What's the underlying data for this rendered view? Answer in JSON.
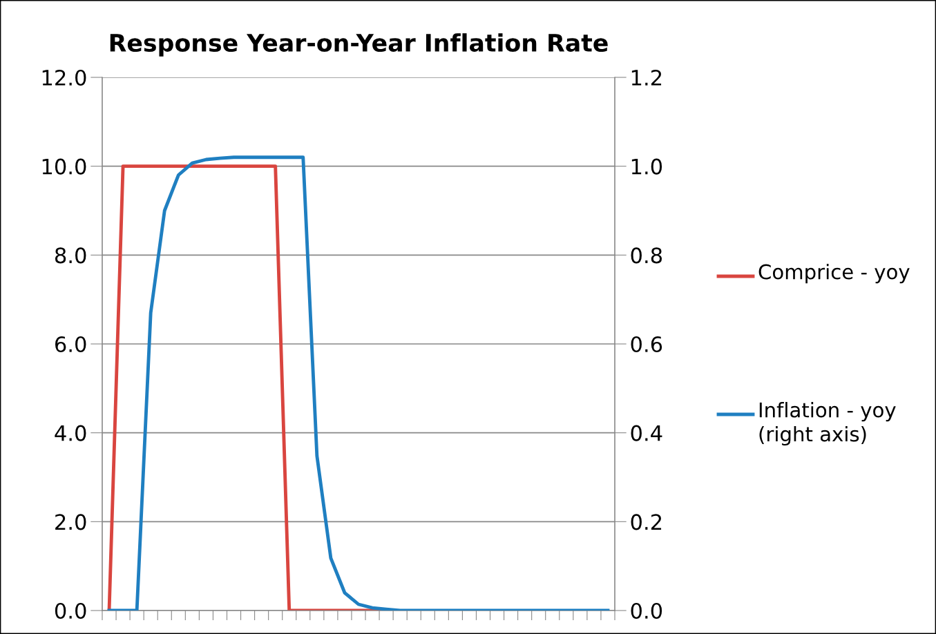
{
  "chart_data": {
    "type": "line",
    "title": "Response Year-on-Year Inflation Rate",
    "categories": [
      null,
      null,
      null,
      null,
      null,
      null,
      null,
      null,
      null,
      null,
      null,
      null,
      null,
      null,
      null,
      null,
      null,
      null,
      null,
      null,
      null,
      null,
      null,
      null,
      null,
      null,
      null,
      null,
      null,
      null,
      null,
      null,
      null,
      null,
      null,
      null,
      null
    ],
    "series": [
      {
        "name": "Comprice - yoy",
        "color": "#d9453f",
        "values": [
          0,
          10,
          10,
          10,
          10,
          10,
          10,
          10,
          10,
          10,
          10,
          10,
          10,
          0,
          0,
          0,
          0,
          0,
          0,
          0,
          0,
          null,
          null,
          null,
          null,
          null,
          null,
          null,
          null,
          null,
          null,
          null,
          null,
          null,
          null,
          null,
          null
        ]
      },
      {
        "name": "Inflation - yoy (right axis)",
        "color": "#1f7fc1",
        "axis": "y2",
        "values": [
          0,
          0,
          0,
          0.67,
          0.9,
          0.98,
          1.007,
          1.015,
          1.018,
          1.02,
          1.02,
          1.02,
          1.02,
          1.02,
          1.02,
          0.348,
          0.118,
          0.04,
          0.014,
          0.006,
          0.003,
          0,
          0,
          0,
          0,
          0,
          0,
          0,
          0,
          0,
          0,
          0,
          0,
          0,
          0,
          0,
          0
        ]
      }
    ],
    "ylim": [
      0,
      12
    ],
    "yticks": [
      {
        "value": 0,
        "label": "0.0"
      },
      {
        "value": 2,
        "label": "2.0"
      },
      {
        "value": 4,
        "label": "4.0"
      },
      {
        "value": 6,
        "label": "6.0"
      },
      {
        "value": 8,
        "label": "8.0"
      },
      {
        "value": 10,
        "label": "10.0"
      },
      {
        "value": 12,
        "label": "12.0"
      }
    ],
    "y2lim": [
      0,
      1.2
    ],
    "y2ticks": [
      {
        "value": 0,
        "label": "0.0"
      },
      {
        "value": 0.2,
        "label": "0.2"
      },
      {
        "value": 0.4,
        "label": "0.4"
      },
      {
        "value": 0.6,
        "label": "0.6"
      },
      {
        "value": 0.8,
        "label": "0.8"
      },
      {
        "value": 1.0,
        "label": "1.0"
      },
      {
        "value": 1.2,
        "label": "1.2"
      }
    ],
    "grid": "y",
    "legend": "right",
    "tick_labels": "y",
    "marker": "none",
    "line_style": "solid"
  }
}
